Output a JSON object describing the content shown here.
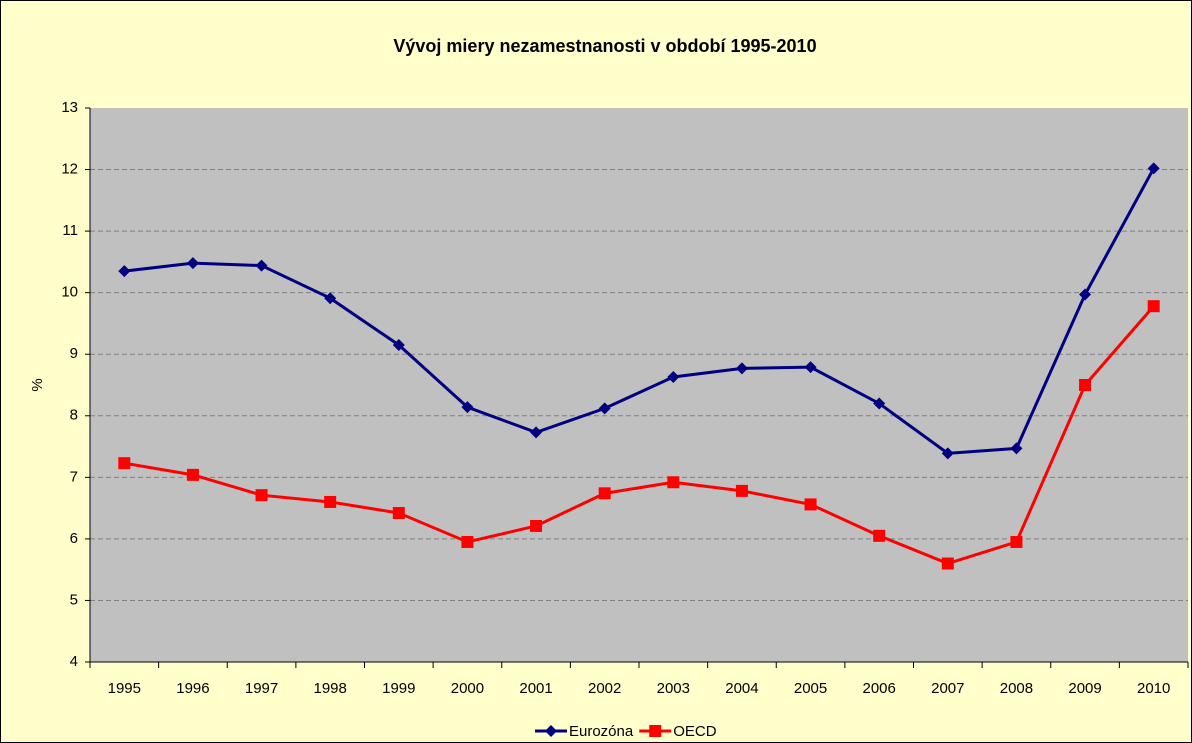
{
  "chart_data": {
    "type": "line",
    "title": "Vývoj miery nezamestnanosti v období 1995-2010",
    "y_label": "%",
    "categories": [
      "1995",
      "1996",
      "1997",
      "1998",
      "1999",
      "2000",
      "2001",
      "2002",
      "2003",
      "2004",
      "2005",
      "2006",
      "2007",
      "2008",
      "2009",
      "2010"
    ],
    "series": [
      {
        "name": "Eurozóna",
        "color": "#000080",
        "marker": "diamond",
        "values": [
          10.35,
          10.48,
          10.44,
          9.91,
          9.15,
          8.14,
          7.73,
          8.12,
          8.63,
          8.77,
          8.79,
          8.2,
          7.39,
          7.47,
          9.97,
          12.02
        ]
      },
      {
        "name": "OECD",
        "color": "#ff0000",
        "marker": "square",
        "values": [
          7.23,
          7.04,
          6.71,
          6.6,
          6.42,
          5.95,
          6.21,
          6.74,
          6.92,
          6.78,
          6.56,
          6.05,
          5.6,
          5.95,
          8.5,
          9.78
        ]
      }
    ],
    "ylim": [
      4,
      13
    ],
    "yticks": [
      4,
      5,
      6,
      7,
      8,
      9,
      10,
      11,
      12,
      13
    ],
    "grid": true,
    "legend": "bottom"
  }
}
